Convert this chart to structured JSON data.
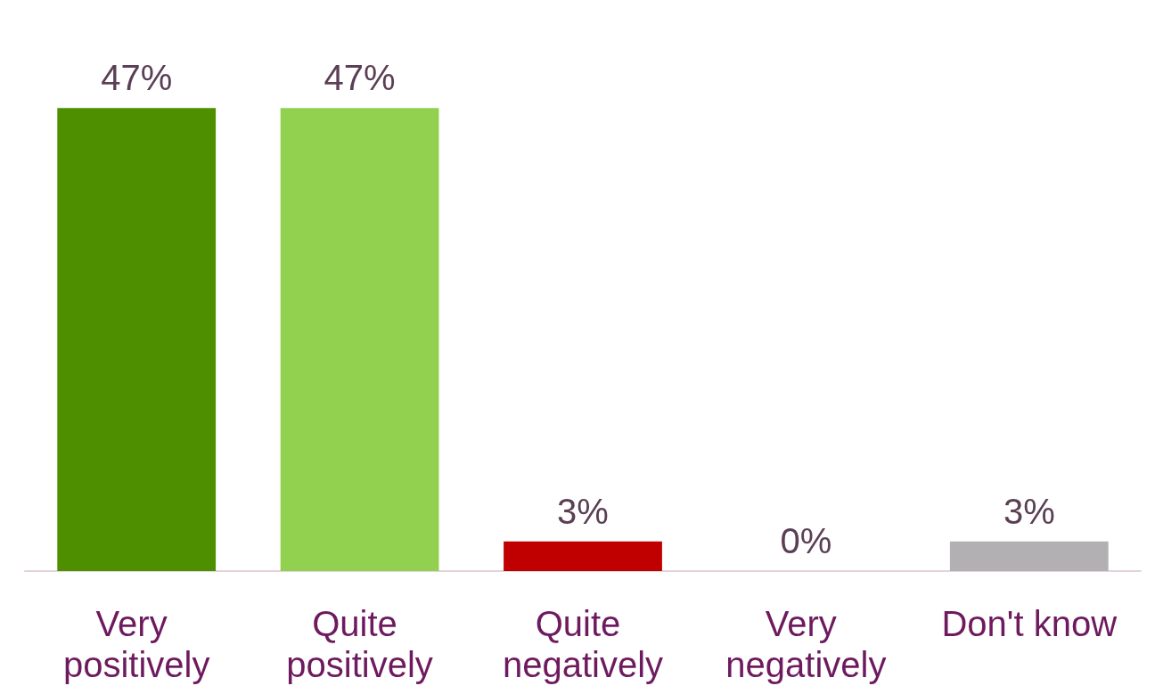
{
  "chart_data": {
    "type": "bar",
    "categories": [
      "Very positively",
      "Quite positively",
      "Quite negatively",
      "Very negatively",
      "Don't know"
    ],
    "values": [
      47,
      47,
      3,
      0,
      3
    ],
    "colors": [
      "#4e8f00",
      "#92d050",
      "#c00000",
      "#b3b0b3",
      "#b3b0b3"
    ],
    "value_labels": [
      "47%",
      "47%",
      "3%",
      "0%",
      "3%"
    ]
  }
}
